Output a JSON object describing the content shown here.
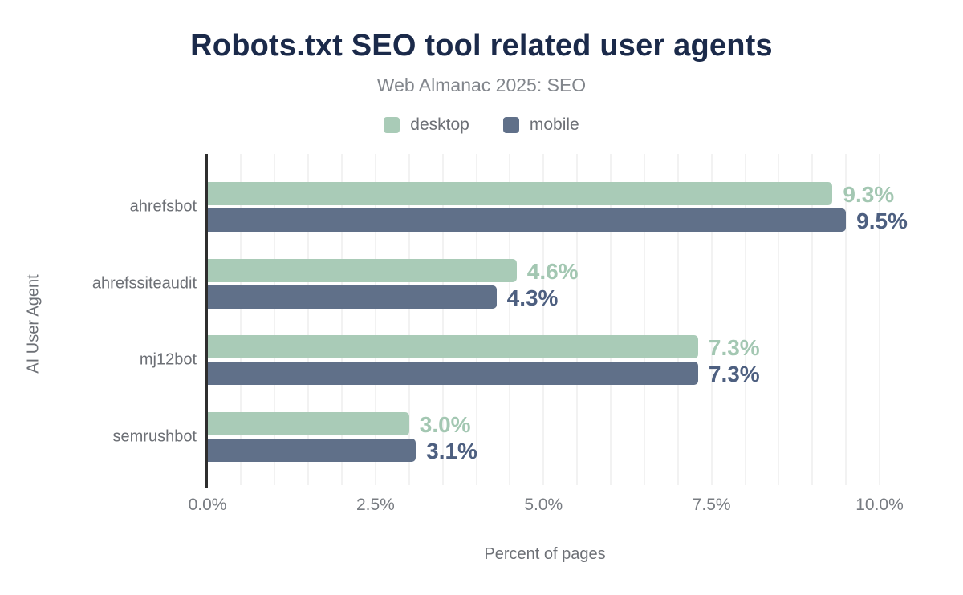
{
  "header": {
    "title": "Robots.txt SEO tool related user agents",
    "subtitle": "Web Almanac 2025: SEO"
  },
  "colors": {
    "title_text": "#1b2a4a",
    "muted_text": "#6d7076",
    "axis_line": "#2e2e2e",
    "gridline": "#f2f2f2",
    "desktop": "#a9cbb7",
    "mobile": "#607089",
    "desktop_value_label": "#a3c7b2",
    "mobile_value_label": "#4d5f80"
  },
  "chart_data": {
    "type": "bar",
    "orientation": "horizontal",
    "title": "Robots.txt SEO tool related user agents",
    "subtitle": "Web Almanac 2025: SEO",
    "xlabel": "Percent of pages",
    "ylabel": "AI User Agent",
    "categories": [
      "ahrefsbot",
      "ahrefssiteaudit",
      "mj12bot",
      "semrushbot"
    ],
    "series": [
      {
        "name": "desktop",
        "values": [
          9.3,
          4.6,
          7.3,
          3.0
        ],
        "labels": [
          "9.3%",
          "4.6%",
          "7.3%",
          "3.0%"
        ],
        "color": "#a9cbb7",
        "label_color": "#a3c7b2"
      },
      {
        "name": "mobile",
        "values": [
          9.5,
          4.3,
          7.3,
          3.1
        ],
        "labels": [
          "9.5%",
          "4.3%",
          "7.3%",
          "3.1%"
        ],
        "color": "#607089",
        "label_color": "#4d5f80"
      }
    ],
    "x_ticks": {
      "values": [
        0,
        2.5,
        5,
        7.5,
        10
      ],
      "labels": [
        "0.0%",
        "2.5%",
        "5.0%",
        "7.5%",
        "10.0%"
      ]
    },
    "xlim": [
      0,
      10.5
    ],
    "grid": "vertical minor gridlines every 0.5%",
    "legend_position": "top-center"
  }
}
